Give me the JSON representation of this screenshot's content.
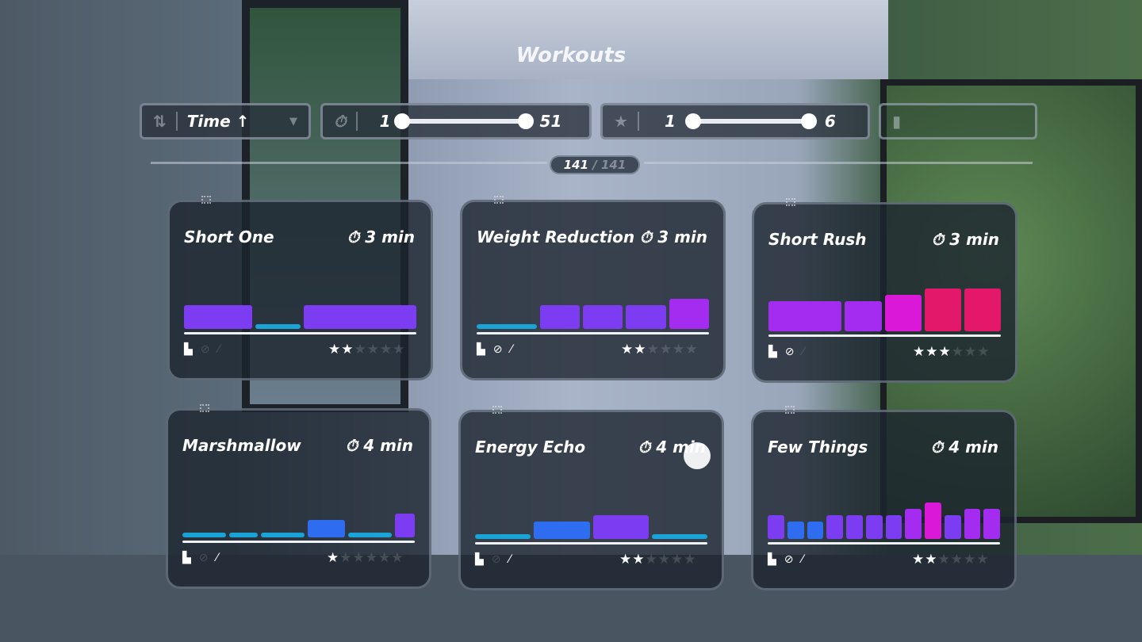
{
  "title": "Workouts",
  "sort": {
    "icon": "sort-arrows-icon",
    "label": "Time ↑",
    "dropdown_icon": "chevron-down-icon"
  },
  "duration_filter": {
    "icon": "stopwatch-icon",
    "min": "1",
    "max": "51"
  },
  "rating_filter": {
    "icon": "star-icon",
    "min": "1",
    "max": "6"
  },
  "equipment_filter": {
    "icon": "equipment-icon"
  },
  "count": {
    "shown": "141",
    "total": "/ 141"
  },
  "colors": {
    "1": "#1aa3d6",
    "2": "#2e6df0",
    "3": "#7b3cf2",
    "4": "#a42cf0",
    "5": "#d918d8",
    "6": "#e3186a"
  },
  "cards": [
    {
      "title": "Short One",
      "duration": "3 min",
      "rating": 2,
      "max_rating": 6,
      "equipment": [
        "glove-icon",
        "no-jump-icon",
        "stick-icon"
      ],
      "equipment_active": [
        true,
        false,
        false
      ],
      "segments": [
        {
          "w": 3,
          "level": 3
        },
        {
          "w": 2,
          "level": 1
        },
        {
          "w": 5,
          "level": 3
        }
      ]
    },
    {
      "title": "Weight Reduction",
      "duration": "3 min",
      "rating": 2,
      "max_rating": 6,
      "equipment": [
        "glove-icon",
        "no-jump-icon",
        "stick-icon"
      ],
      "equipment_active": [
        true,
        true,
        true
      ],
      "segments": [
        {
          "w": 3,
          "level": 1
        },
        {
          "w": 2,
          "level": 3
        },
        {
          "w": 2,
          "level": 3
        },
        {
          "w": 2,
          "level": 3
        },
        {
          "w": 2,
          "level": 4
        }
      ]
    },
    {
      "title": "Short Rush",
      "duration": "3 min",
      "rating": 3,
      "max_rating": 6,
      "equipment": [
        "glove-icon",
        "no-jump-icon",
        "stick-icon"
      ],
      "equipment_active": [
        true,
        true,
        false
      ],
      "segments": [
        {
          "w": 4,
          "level": 4
        },
        {
          "w": 2,
          "level": 4
        },
        {
          "w": 2,
          "level": 5
        },
        {
          "w": 2,
          "level": 6
        },
        {
          "w": 2,
          "level": 6
        }
      ]
    },
    {
      "title": "Marshmallow",
      "duration": "4 min",
      "rating": 1,
      "max_rating": 6,
      "equipment": [
        "glove-icon",
        "no-jump-icon",
        "stick-icon"
      ],
      "equipment_active": [
        true,
        false,
        true
      ],
      "segments": [
        {
          "w": 2,
          "level": 1
        },
        {
          "w": 1.3,
          "level": 1
        },
        {
          "w": 2,
          "level": 1
        },
        {
          "w": 1.7,
          "level": 2
        },
        {
          "w": 2,
          "level": 1
        },
        {
          "w": 0.9,
          "level": 3
        }
      ]
    },
    {
      "title": "Energy Echo",
      "duration": "4 min",
      "rating": 2,
      "max_rating": 6,
      "equipment": [
        "glove-icon",
        "no-jump-icon",
        "stick-icon"
      ],
      "equipment_active": [
        true,
        false,
        true
      ],
      "segments": [
        {
          "w": 3,
          "level": 1
        },
        {
          "w": 3,
          "level": 2
        },
        {
          "w": 3,
          "level": 3
        },
        {
          "w": 3,
          "level": 1
        }
      ]
    },
    {
      "title": "Few Things",
      "duration": "4 min",
      "rating": 2,
      "max_rating": 6,
      "equipment": [
        "glove-icon",
        "no-jump-icon",
        "stick-icon"
      ],
      "equipment_active": [
        true,
        true,
        true
      ],
      "segments": [
        {
          "w": 1,
          "level": 3
        },
        {
          "w": 1,
          "level": 2
        },
        {
          "w": 1,
          "level": 2
        },
        {
          "w": 1,
          "level": 3
        },
        {
          "w": 1,
          "level": 3
        },
        {
          "w": 1,
          "level": 3
        },
        {
          "w": 1,
          "level": 3
        },
        {
          "w": 1,
          "level": 4
        },
        {
          "w": 1,
          "level": 5
        },
        {
          "w": 1,
          "level": 3
        },
        {
          "w": 1,
          "level": 4
        },
        {
          "w": 1,
          "level": 4
        }
      ]
    }
  ]
}
